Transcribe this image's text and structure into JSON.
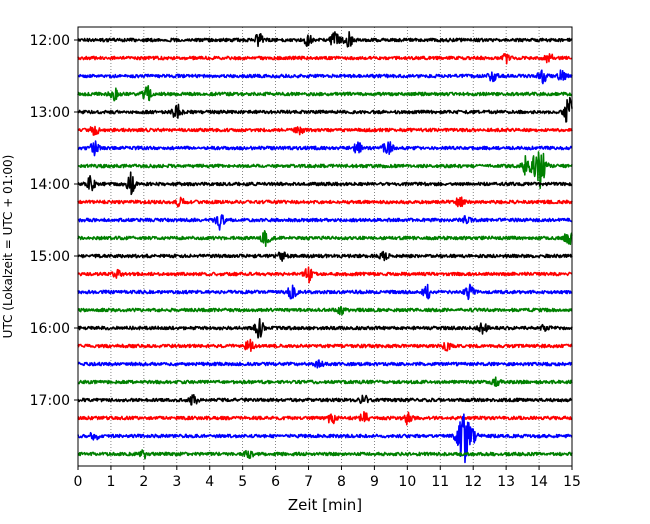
{
  "chart_data": {
    "type": "line",
    "title": "",
    "xlabel": "Zeit  [min]",
    "ylabel": "UTC (Lokalzeit = UTC + 01:00)",
    "xlim": [
      0,
      15
    ],
    "x_ticks": [
      "0",
      "1",
      "2",
      "3",
      "4",
      "5",
      "6",
      "7",
      "8",
      "9",
      "10",
      "11",
      "12",
      "13",
      "14",
      "15"
    ],
    "y_ticks": [
      "12:00",
      "13:00",
      "14:00",
      "15:00",
      "16:00",
      "17:00"
    ],
    "grid": "vertical dotted at each minute",
    "trace_colors": [
      "#000000",
      "#ff0000",
      "#0000ff",
      "#008000"
    ],
    "traces": [
      {
        "start": "12:00",
        "events": [
          {
            "x": 5.5,
            "amp": 0.35
          },
          {
            "x": 7.0,
            "amp": 0.3
          },
          {
            "x": 7.8,
            "amp": 0.55
          },
          {
            "x": 8.2,
            "amp": 0.4
          }
        ]
      },
      {
        "start": "12:15",
        "events": [
          {
            "x": 13.0,
            "amp": 0.25
          },
          {
            "x": 14.3,
            "amp": 0.25
          }
        ]
      },
      {
        "start": "12:30",
        "events": [
          {
            "x": 12.6,
            "amp": 0.3
          },
          {
            "x": 14.1,
            "amp": 0.35
          },
          {
            "x": 14.7,
            "amp": 0.3
          }
        ]
      },
      {
        "start": "12:45",
        "events": [
          {
            "x": 1.1,
            "amp": 0.3
          },
          {
            "x": 2.1,
            "amp": 0.4
          }
        ]
      },
      {
        "start": "13:00",
        "events": [
          {
            "x": 3.0,
            "amp": 0.4
          },
          {
            "x": 14.9,
            "amp": 0.8
          }
        ]
      },
      {
        "start": "13:15",
        "events": [
          {
            "x": 0.5,
            "amp": 0.25
          },
          {
            "x": 6.7,
            "amp": 0.25
          }
        ]
      },
      {
        "start": "13:30",
        "events": [
          {
            "x": 0.5,
            "amp": 0.35
          },
          {
            "x": 8.5,
            "amp": 0.35
          },
          {
            "x": 9.4,
            "amp": 0.5
          }
        ]
      },
      {
        "start": "13:45",
        "events": [
          {
            "x": 13.6,
            "amp": 0.5
          },
          {
            "x": 14.0,
            "amp": 1.3
          }
        ]
      },
      {
        "start": "14:00",
        "events": [
          {
            "x": 0.4,
            "amp": 0.4
          },
          {
            "x": 1.6,
            "amp": 0.6
          }
        ]
      },
      {
        "start": "14:15",
        "events": [
          {
            "x": 3.1,
            "amp": 0.25
          },
          {
            "x": 11.6,
            "amp": 0.25
          }
        ]
      },
      {
        "start": "14:30",
        "events": [
          {
            "x": 4.3,
            "amp": 0.5
          },
          {
            "x": 11.8,
            "amp": 0.25
          }
        ]
      },
      {
        "start": "14:45",
        "events": [
          {
            "x": 5.7,
            "amp": 0.45
          },
          {
            "x": 14.9,
            "amp": 0.4
          }
        ]
      },
      {
        "start": "15:00",
        "events": [
          {
            "x": 6.2,
            "amp": 0.25
          },
          {
            "x": 9.3,
            "amp": 0.25
          }
        ]
      },
      {
        "start": "15:15",
        "events": [
          {
            "x": 7.0,
            "amp": 0.4
          },
          {
            "x": 1.2,
            "amp": 0.2
          }
        ]
      },
      {
        "start": "15:30",
        "events": [
          {
            "x": 6.5,
            "amp": 0.35
          },
          {
            "x": 10.6,
            "amp": 0.35
          },
          {
            "x": 11.9,
            "amp": 0.4
          }
        ]
      },
      {
        "start": "15:45",
        "events": [
          {
            "x": 8.0,
            "amp": 0.2
          }
        ]
      },
      {
        "start": "16:00",
        "events": [
          {
            "x": 5.5,
            "amp": 0.5
          },
          {
            "x": 12.3,
            "amp": 0.25
          },
          {
            "x": 14.2,
            "amp": 0.25
          }
        ]
      },
      {
        "start": "16:15",
        "events": [
          {
            "x": 5.2,
            "amp": 0.3
          },
          {
            "x": 11.2,
            "amp": 0.2
          }
        ]
      },
      {
        "start": "16:30",
        "events": [
          {
            "x": 7.3,
            "amp": 0.2
          }
        ]
      },
      {
        "start": "16:45",
        "events": [
          {
            "x": 12.7,
            "amp": 0.2
          }
        ]
      },
      {
        "start": "17:00",
        "events": [
          {
            "x": 3.5,
            "amp": 0.25
          },
          {
            "x": 8.7,
            "amp": 0.25
          }
        ]
      },
      {
        "start": "17:15",
        "events": [
          {
            "x": 7.7,
            "amp": 0.3
          },
          {
            "x": 8.7,
            "amp": 0.3
          },
          {
            "x": 10.0,
            "amp": 0.3
          }
        ]
      },
      {
        "start": "17:30",
        "events": [
          {
            "x": 0.5,
            "amp": 0.3
          },
          {
            "x": 11.7,
            "amp": 1.5
          },
          {
            "x": 12.0,
            "amp": 0.35
          }
        ]
      },
      {
        "start": "17:45",
        "events": [
          {
            "x": 2.0,
            "amp": 0.2
          },
          {
            "x": 5.2,
            "amp": 0.2
          }
        ]
      }
    ]
  }
}
